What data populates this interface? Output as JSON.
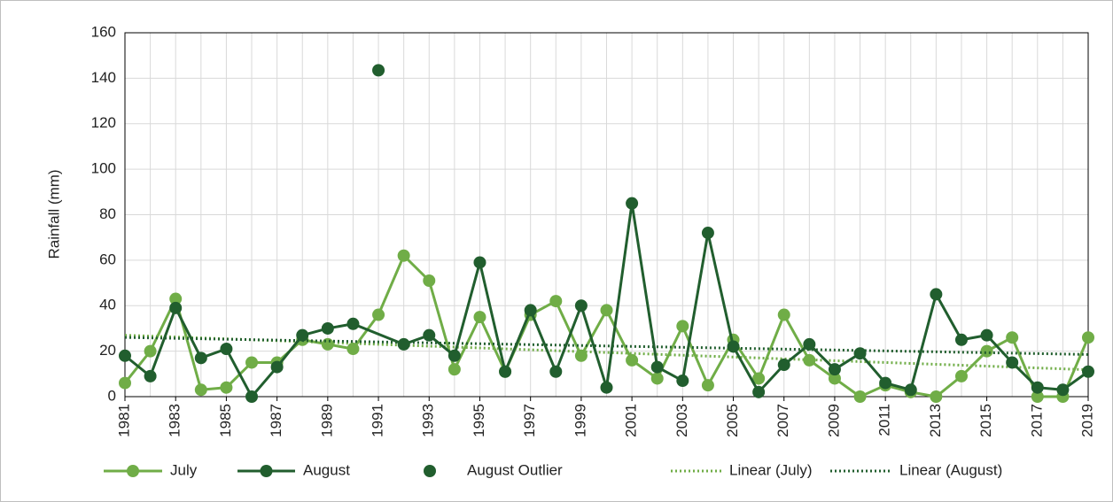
{
  "chart_data": {
    "type": "line",
    "y_label": "Rainfall (mm)",
    "x": [
      1981,
      1982,
      1983,
      1984,
      1985,
      1986,
      1987,
      1988,
      1989,
      1990,
      1991,
      1992,
      1993,
      1994,
      1995,
      1996,
      1997,
      1998,
      1999,
      2000,
      2001,
      2002,
      2003,
      2004,
      2005,
      2006,
      2007,
      2008,
      2009,
      2010,
      2011,
      2012,
      2013,
      2014,
      2015,
      2016,
      2017,
      2018,
      2019
    ],
    "xlim": [
      1981,
      2019
    ],
    "xticks": [
      1981,
      1983,
      1985,
      1987,
      1989,
      1991,
      1993,
      1995,
      1997,
      1999,
      2001,
      2003,
      2005,
      2007,
      2009,
      2011,
      2013,
      2015,
      2017,
      2019
    ],
    "ylim": [
      0,
      160
    ],
    "yticks": [
      0,
      20,
      40,
      60,
      80,
      100,
      120,
      140,
      160
    ],
    "grid": true,
    "series": [
      {
        "name": "July",
        "color": "#70ad47",
        "style": "line-marker",
        "values": [
          6,
          20,
          43,
          3,
          4,
          15,
          15,
          25,
          23,
          21,
          36,
          62,
          51,
          12,
          35,
          11,
          36,
          42,
          18,
          38,
          16,
          8,
          31,
          5,
          25,
          8,
          36,
          16,
          8,
          0,
          5,
          2,
          0,
          9,
          20,
          26,
          0,
          0,
          26
        ],
        "trendline": {
          "name": "Linear (July)",
          "color": "#70ad47"
        }
      },
      {
        "name": "August",
        "color": "#215e2e",
        "style": "line-marker",
        "x": [
          1981,
          1982,
          1983,
          1984,
          1985,
          1986,
          1987,
          1988,
          1989,
          1990,
          1992,
          1993,
          1994,
          1995,
          1996,
          1997,
          1998,
          1999,
          2000,
          2001,
          2002,
          2003,
          2004,
          2005,
          2006,
          2007,
          2008,
          2009,
          2010,
          2011,
          2012,
          2013,
          2014,
          2015,
          2016,
          2017,
          2018,
          2019
        ],
        "values": [
          18,
          9,
          39,
          17,
          21,
          0,
          13,
          27,
          30,
          32,
          23,
          27,
          18,
          59,
          11,
          38,
          11,
          40,
          4,
          85,
          13,
          7,
          72,
          22,
          2,
          14,
          23,
          12,
          19,
          6,
          3,
          45,
          25,
          27,
          15,
          4,
          3,
          11
        ],
        "trendline": {
          "name": "Linear (August)",
          "color": "#215e2e"
        }
      },
      {
        "name": "August Outlier",
        "color": "#215e2e",
        "style": "marker",
        "x": [
          1991
        ],
        "values": [
          143.5
        ]
      }
    ]
  }
}
